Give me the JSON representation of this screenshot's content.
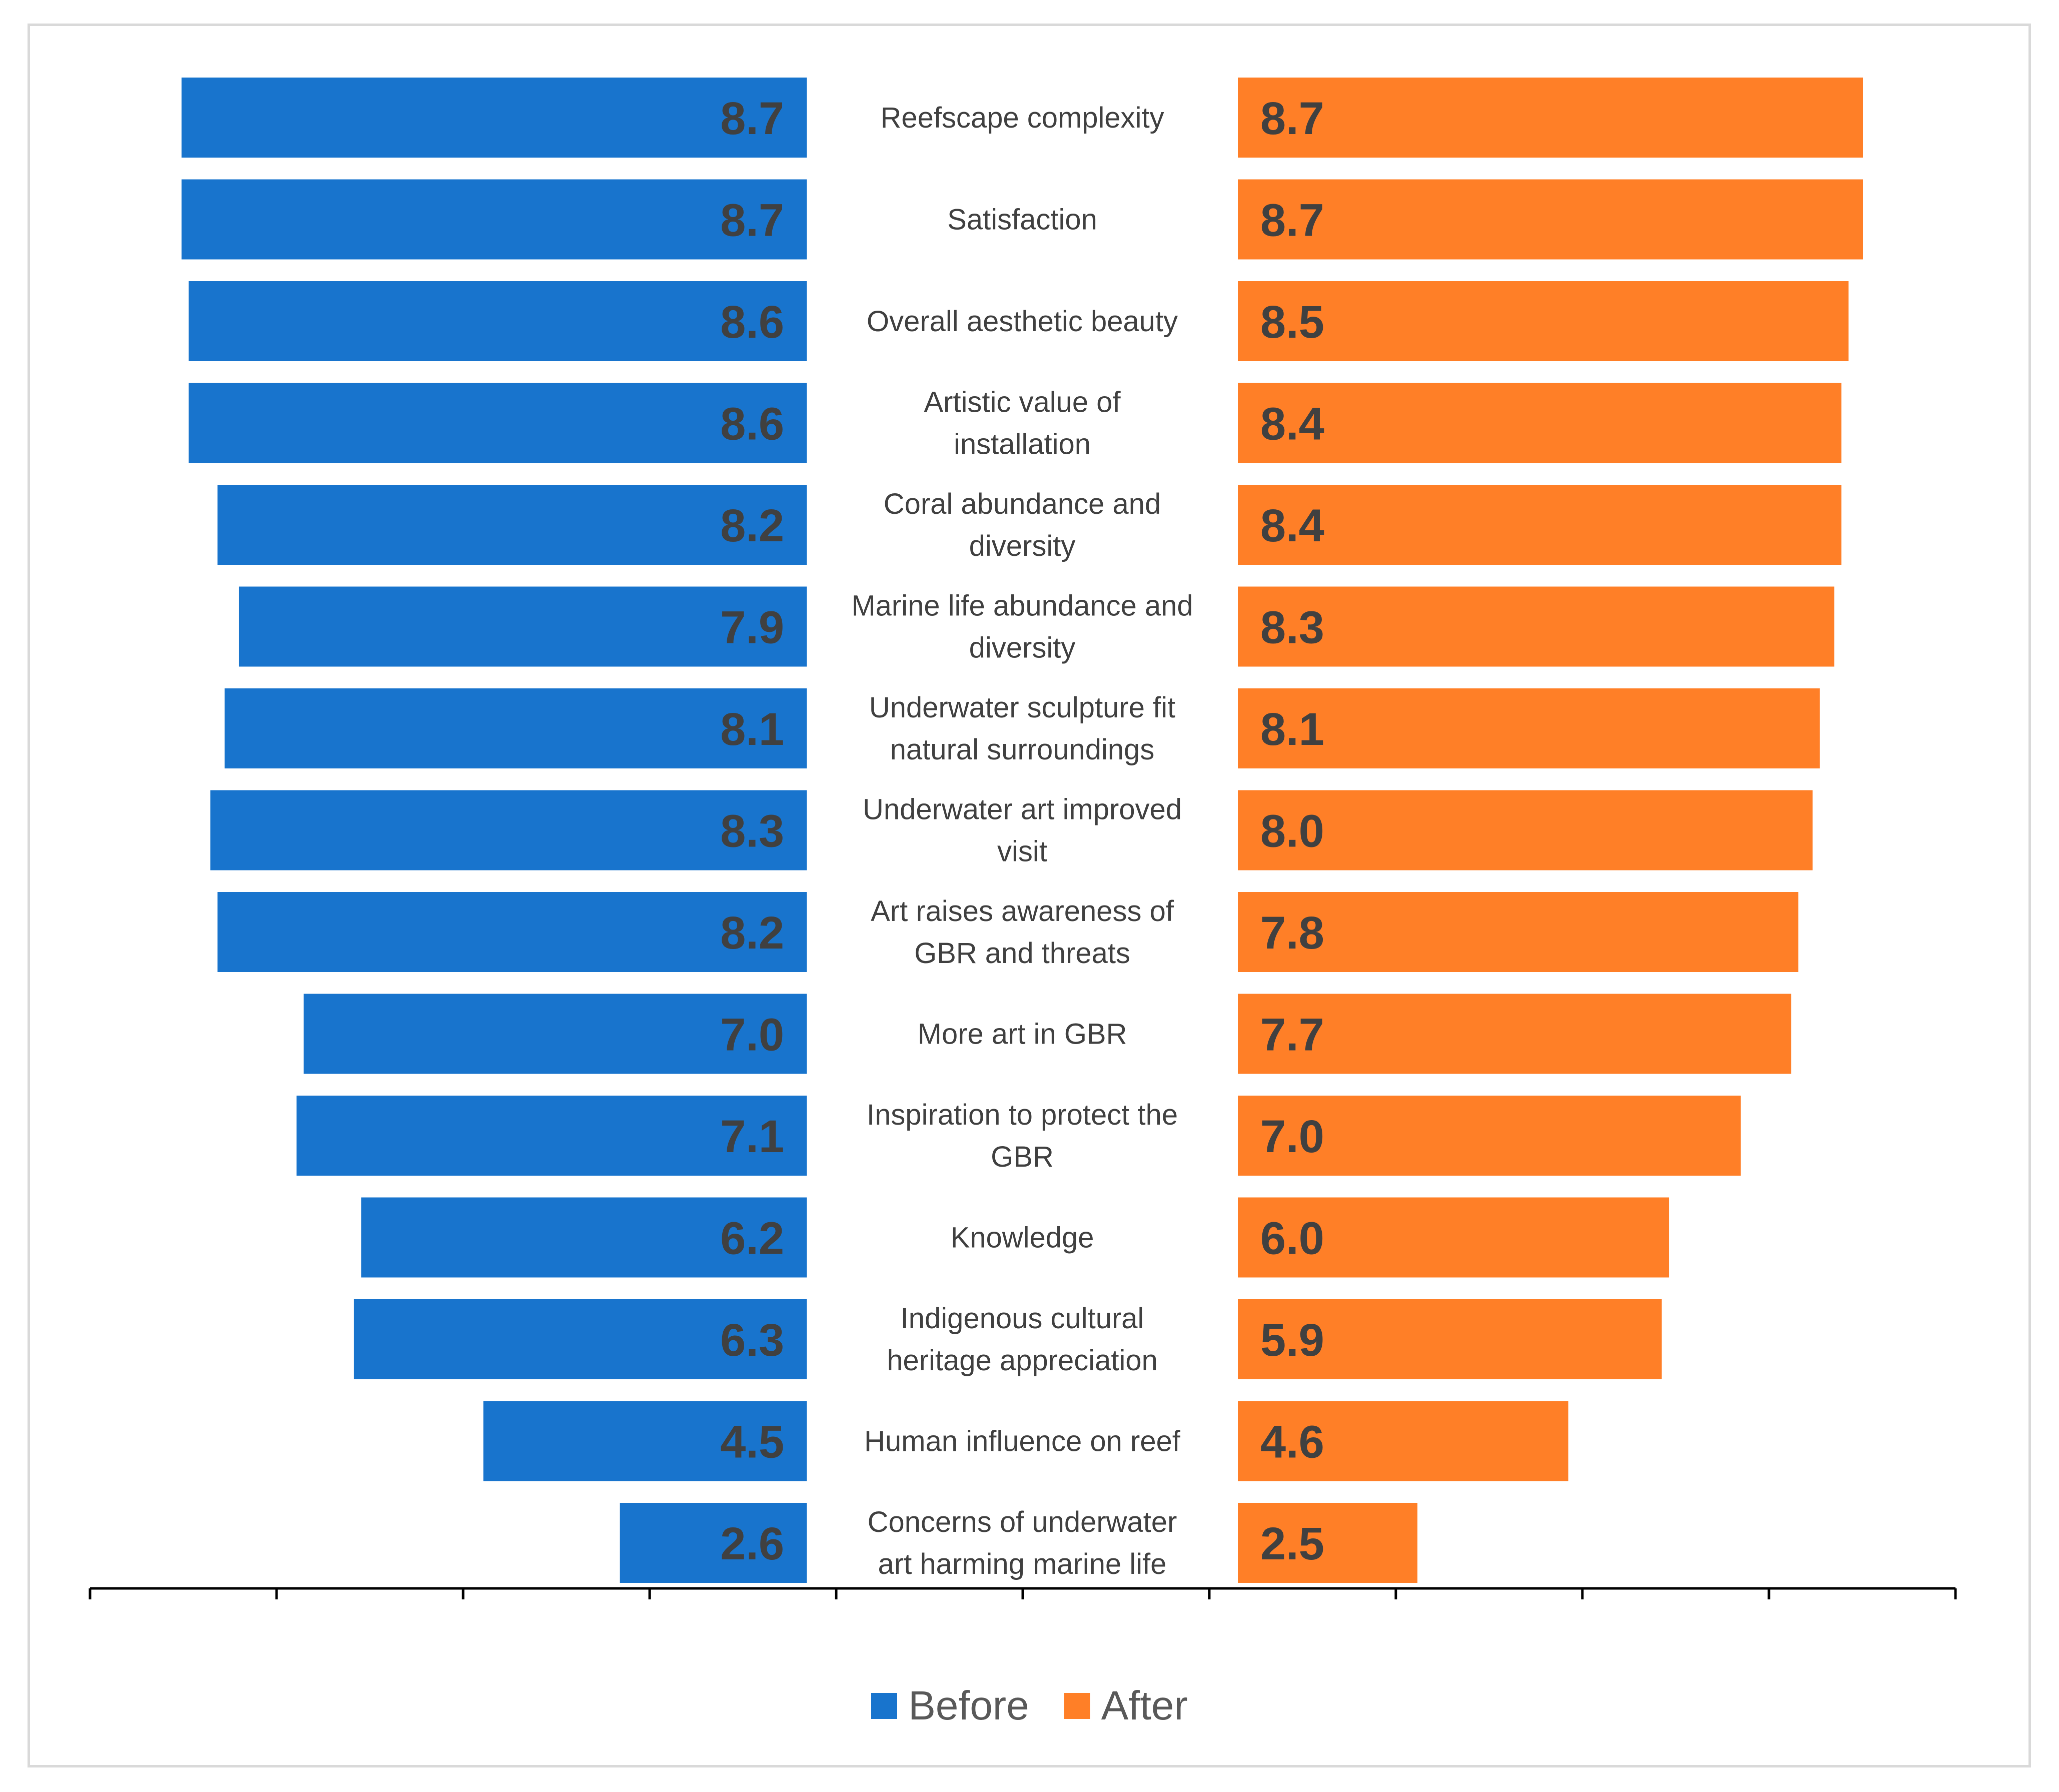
{
  "chart_data": {
    "type": "bar",
    "orientation": "horizontal-butterfly",
    "title": "",
    "categories": [
      "Reefscape complexity",
      "Satisfaction",
      "Overall aesthetic beauty",
      "Artistic value of installation",
      "Coral abundance and diversity",
      "Marine life abundance and diversity",
      "Underwater sculpture fit natural surroundings",
      "Underwater art improved visit",
      "Art raises awareness of GBR and threats",
      "More art in GBR",
      "Inspiration to protect the GBR",
      "Knowledge",
      "Indigenous cultural heritage appreciation",
      "Human influence on reef",
      "Concerns of underwater art harming marine life"
    ],
    "category_lines": [
      [
        "Reefscape complexity"
      ],
      [
        "Satisfaction"
      ],
      [
        "Overall aesthetic beauty"
      ],
      [
        "Artistic value of",
        "installation"
      ],
      [
        "Coral abundance and",
        "diversity"
      ],
      [
        "Marine life abundance and",
        "diversity"
      ],
      [
        "Underwater sculpture fit",
        "natural surroundings"
      ],
      [
        "Underwater art improved",
        "visit"
      ],
      [
        "Art raises awareness of",
        "GBR and threats"
      ],
      [
        "More art in GBR"
      ],
      [
        "Inspiration to protect the",
        "GBR"
      ],
      [
        "Knowledge"
      ],
      [
        "Indigenous cultural",
        "heritage appreciation"
      ],
      [
        "Human influence on reef"
      ],
      [
        "Concerns of underwater",
        "art harming marine life"
      ]
    ],
    "series": [
      {
        "name": "Before",
        "color": "#1874CD",
        "values": [
          8.7,
          8.7,
          8.6,
          8.6,
          8.2,
          7.9,
          8.1,
          8.3,
          8.2,
          7.0,
          7.1,
          6.2,
          6.3,
          4.5,
          2.6
        ],
        "labels": [
          "8.7",
          "8.7",
          "8.6",
          "8.6",
          "8.2",
          "7.9",
          "8.1",
          "8.3",
          "8.2",
          "7.0",
          "7.1",
          "6.2",
          "6.3",
          "4.5",
          "2.6"
        ]
      },
      {
        "name": "After",
        "color": "#FF7F27",
        "values": [
          8.7,
          8.7,
          8.5,
          8.4,
          8.4,
          8.3,
          8.1,
          8.0,
          7.8,
          7.7,
          7.0,
          6.0,
          5.9,
          4.6,
          2.5
        ],
        "labels": [
          "8.7",
          "8.7",
          "8.5",
          "8.4",
          "8.4",
          "8.3",
          "8.1",
          "8.0",
          "7.8",
          "7.7",
          "7.0",
          "6.0",
          "5.9",
          "4.6",
          "2.5"
        ]
      }
    ],
    "xlim": [
      0,
      10
    ],
    "xlabel": "",
    "ylabel": "",
    "legend": "bottom-center",
    "grid": false,
    "axis_tick_labels": false
  }
}
